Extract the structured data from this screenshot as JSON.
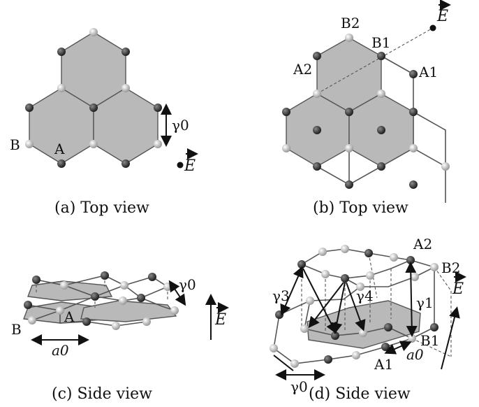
{
  "panels": {
    "a": {
      "caption": "(a) Top view",
      "labels": {
        "B": "B",
        "A": "A",
        "gamma0": "γ0",
        "E": "E"
      }
    },
    "b": {
      "caption": "(b) Top view",
      "labels": {
        "B2": "B2",
        "B1": "B1",
        "A2": "A2",
        "A1": "A1",
        "E": "E"
      }
    },
    "c": {
      "caption": "(c) Side view",
      "labels": {
        "B": "B",
        "A": "A",
        "a0": "a0",
        "gamma0": "γ0",
        "E": "E"
      }
    },
    "d": {
      "caption": "(d) Side view",
      "labels": {
        "A2": "A2",
        "B2": "B2",
        "gamma3": "γ3",
        "gamma4": "γ4",
        "gamma1": "γ1",
        "B1": "B1",
        "A1": "A1",
        "a0": "a0",
        "gamma0": "γ0",
        "E": "E"
      }
    }
  },
  "colors": {
    "atom_dark": "#3a3a3a",
    "atom_light": "#e6e6e6",
    "hex_fill": "#b9b9b9",
    "bond": "#555555"
  }
}
